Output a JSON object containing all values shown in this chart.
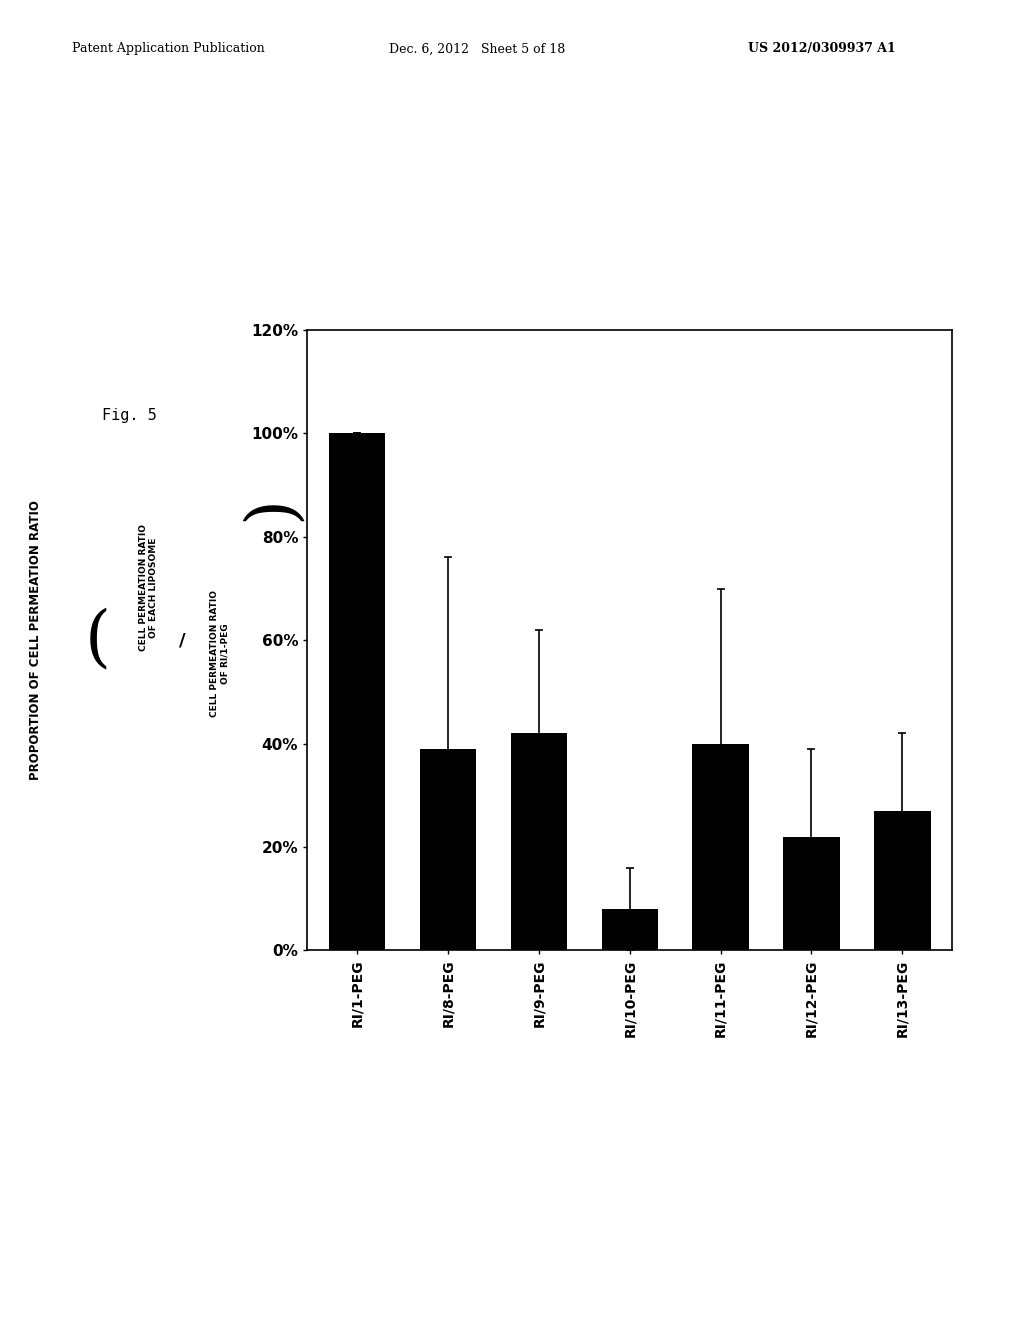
{
  "categories": [
    "RI/1-PEG",
    "RI/8-PEG",
    "RI/9-PEG",
    "RI/10-PEG",
    "RI/11-PEG",
    "RI/12-PEG",
    "RI/13-PEG"
  ],
  "values": [
    100,
    39,
    42,
    8,
    40,
    22,
    27
  ],
  "errors": [
    0,
    37,
    20,
    8,
    30,
    17,
    15
  ],
  "bar_color": "#000000",
  "background_color": "#ffffff",
  "ytick_labels": [
    "0%",
    "20%",
    "40%",
    "60%",
    "80%",
    "100%",
    "120%"
  ],
  "ytick_values": [
    0,
    20,
    40,
    60,
    80,
    100,
    120
  ],
  "ylim": [
    0,
    120
  ],
  "header_left": "Patent Application Publication",
  "header_center": "Dec. 6, 2012   Sheet 5 of 18",
  "header_right": "US 2012/0309937 A1",
  "fig_label": "Fig. 5",
  "fig_width": 10.24,
  "fig_height": 13.2,
  "ylabel_outer": "PROPORTION OF CELL PERMEATION RATIO",
  "ylabel_num_line1": "CELL PERMEATION RATIO",
  "ylabel_num_line2": "OF EACH LIPOSOME",
  "ylabel_den_line1": "CELL PERMEATION RATIO",
  "ylabel_den_line2": "OF RI/1-PEG"
}
